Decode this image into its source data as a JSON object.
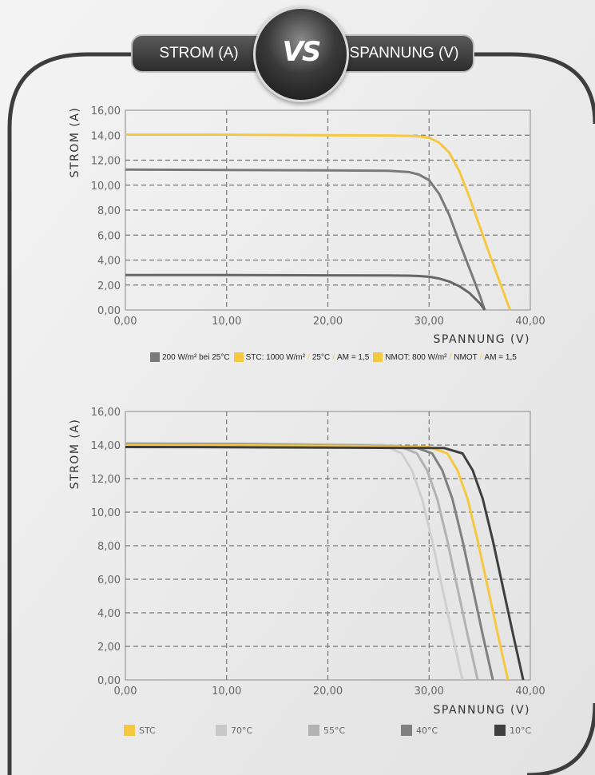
{
  "header": {
    "left_tab": "STROM (A)",
    "right_tab": "SPANNUNG (V)",
    "badge": "VS"
  },
  "chart_data": [
    {
      "type": "line",
      "xlabel": "SPANNUNG (V)",
      "ylabel": "STROM (A)",
      "xlim": [
        0,
        40
      ],
      "ylim": [
        0,
        16
      ],
      "xticks": [
        "0,00",
        "10,00",
        "20,00",
        "30,00",
        "40,00"
      ],
      "yticks": [
        "0,00",
        "2,00",
        "4,00",
        "6,00",
        "8,00",
        "10,00",
        "12,00",
        "14,00",
        "16,00"
      ],
      "grid": true,
      "legend": [
        {
          "color": "#7a7a7a",
          "label": "200 W/m² bei 25°C"
        },
        {
          "color": "#f5c842",
          "label": "STC: 1000 W/m²",
          "parts": [
            "25°C",
            "AM = 1,5"
          ]
        },
        {
          "color": "#f5c842",
          "label": "NMOT: 800 W/m²",
          "parts": [
            "NMOT",
            "AM = 1,5"
          ]
        }
      ],
      "series": [
        {
          "color": "#f5c842",
          "x": [
            0,
            10,
            20,
            26,
            28,
            29,
            30,
            31,
            32,
            33,
            34,
            35,
            36,
            37,
            38
          ],
          "y": [
            14.05,
            14.05,
            14.0,
            13.98,
            13.95,
            13.9,
            13.8,
            13.4,
            12.6,
            11.1,
            9.0,
            6.7,
            4.4,
            2.2,
            0
          ]
        },
        {
          "color": "#7a7a7a",
          "x": [
            0,
            10,
            20,
            26,
            28,
            29,
            30,
            31,
            32,
            33,
            34,
            35,
            35.5
          ],
          "y": [
            11.25,
            11.22,
            11.18,
            11.15,
            11.05,
            10.85,
            10.4,
            9.3,
            7.6,
            5.4,
            3.3,
            1.2,
            0
          ]
        },
        {
          "color": "#666666",
          "x": [
            0,
            10,
            20,
            26,
            28,
            29,
            30,
            31,
            32,
            33,
            34,
            35,
            35.5
          ],
          "y": [
            2.8,
            2.8,
            2.78,
            2.77,
            2.75,
            2.72,
            2.66,
            2.52,
            2.28,
            1.9,
            1.35,
            0.55,
            0
          ]
        }
      ]
    },
    {
      "type": "line",
      "xlabel": "SPANNUNG (V)",
      "ylabel": "STROM (A)",
      "xlim": [
        0,
        40
      ],
      "ylim": [
        0,
        16
      ],
      "xticks": [
        "0,00",
        "10,00",
        "20,00",
        "30,00",
        "40,00"
      ],
      "yticks": [
        "0,00",
        "2,00",
        "4,00",
        "6,00",
        "8,00",
        "10,00",
        "12,00",
        "14,00",
        "16,00"
      ],
      "grid": true,
      "legend": [
        {
          "color": "#f5c842",
          "label": "STC"
        },
        {
          "color": "#c8c8c8",
          "label": "70°C"
        },
        {
          "color": "#b2b2b2",
          "label": "55°C"
        },
        {
          "color": "#808080",
          "label": "40°C"
        },
        {
          "color": "#3f3f3f",
          "label": "10°C"
        }
      ],
      "series": [
        {
          "name": "70°C",
          "color": "#cfcfcf",
          "x": [
            0,
            10,
            20,
            25.5,
            27.3,
            28.3,
            29.3,
            30.3,
            31.3,
            32.3,
            33.3
          ],
          "y": [
            14.12,
            14.1,
            14.05,
            14.0,
            13.5,
            12.5,
            10.8,
            8.3,
            5.5,
            2.7,
            0
          ]
        },
        {
          "name": "55°C",
          "color": "#b2b2b2",
          "x": [
            0,
            10,
            20,
            27,
            28.8,
            29.8,
            30.8,
            31.8,
            32.8,
            33.8,
            34.8
          ],
          "y": [
            14.08,
            14.06,
            14.0,
            13.95,
            13.5,
            12.5,
            10.8,
            8.3,
            5.5,
            2.7,
            0
          ]
        },
        {
          "name": "40°C",
          "color": "#808080",
          "x": [
            0,
            10,
            20,
            28.5,
            30.3,
            31.3,
            32.3,
            33.3,
            34.3,
            35.3,
            36.3
          ],
          "y": [
            14.04,
            14.02,
            13.97,
            13.9,
            13.5,
            12.5,
            10.8,
            8.3,
            5.5,
            2.7,
            0
          ]
        },
        {
          "name": "STC",
          "color": "#f5c842",
          "x": [
            0,
            10,
            20,
            30,
            31.8,
            32.8,
            33.8,
            34.8,
            35.8,
            36.8,
            37.8
          ],
          "y": [
            14.0,
            13.98,
            13.95,
            13.88,
            13.5,
            12.5,
            10.8,
            8.3,
            5.5,
            2.7,
            0
          ]
        },
        {
          "name": "10°C",
          "color": "#3f3f3f",
          "x": [
            0,
            10,
            20,
            31.5,
            33.3,
            34.3,
            35.3,
            36.3,
            37.3,
            38.3,
            39.3
          ],
          "y": [
            13.88,
            13.87,
            13.85,
            13.82,
            13.5,
            12.5,
            10.8,
            8.3,
            5.5,
            2.7,
            0
          ]
        }
      ]
    }
  ]
}
